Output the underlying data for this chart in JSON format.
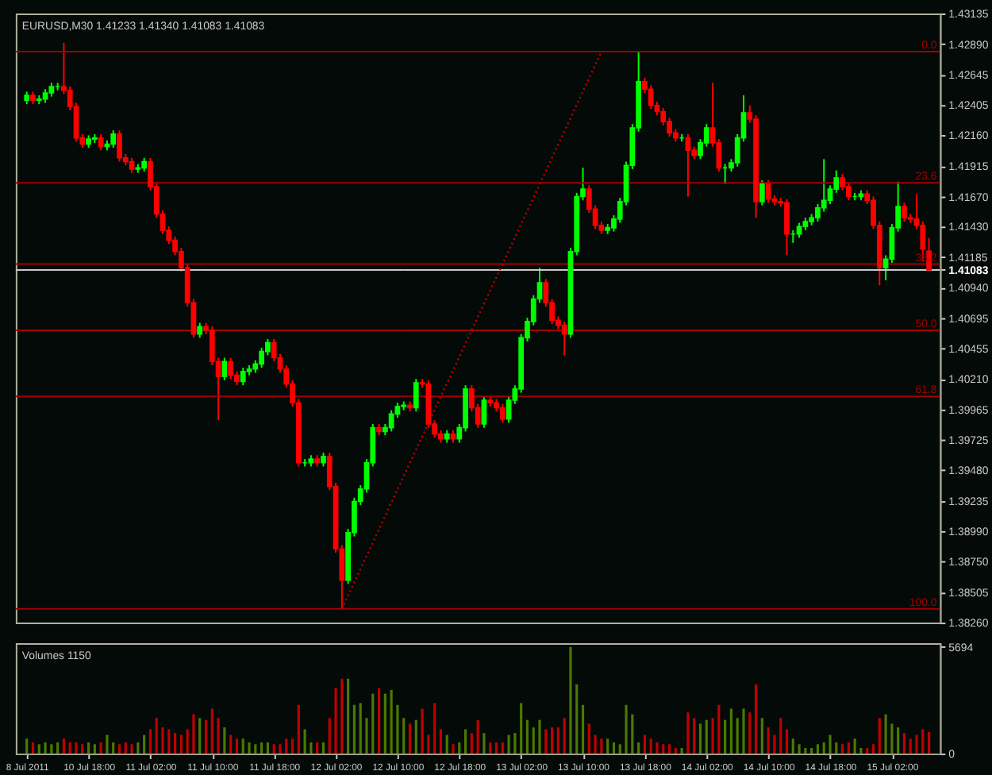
{
  "chart_data": [
    {
      "type": "candlestick",
      "title": "EURUSD,M30  1.41233 1.41340 1.41083 1.41083",
      "categories": [
        null,
        null,
        null,
        null,
        null,
        null,
        null,
        null,
        null,
        null,
        null,
        null,
        null,
        null,
        null,
        null,
        null,
        null,
        null,
        null,
        null,
        null,
        null,
        null,
        null,
        null,
        null,
        null,
        null,
        null,
        null,
        null,
        null,
        null,
        null,
        null,
        null,
        null,
        null,
        null,
        null,
        null,
        null,
        null,
        null,
        null,
        null,
        null,
        null,
        null,
        null,
        null,
        null,
        null,
        null,
        null,
        null,
        null,
        null,
        null,
        null,
        null,
        null,
        null,
        null,
        null,
        null,
        null,
        null,
        null,
        null,
        null,
        null,
        null,
        null,
        null,
        null,
        null,
        null,
        null,
        null,
        null,
        null,
        null,
        null,
        null,
        null,
        null,
        null,
        null,
        null,
        null,
        null,
        null,
        null,
        null,
        null,
        null,
        null,
        null,
        null,
        null,
        null,
        null,
        null,
        null,
        null,
        null,
        null,
        null,
        null,
        null,
        null,
        null,
        null,
        null,
        null,
        null,
        null,
        null,
        null,
        null,
        null,
        null,
        null,
        null,
        null,
        null,
        null,
        null,
        null,
        null,
        null,
        null,
        null,
        null,
        null,
        null,
        null,
        null,
        null,
        null,
        null,
        null,
        null,
        null,
        null
      ],
      "ohlc": [
        [
          1.4244,
          1.4251,
          1.4241,
          1.4248
        ],
        [
          1.4248,
          1.4251,
          1.4241,
          1.4244
        ],
        [
          1.4244,
          1.4248,
          1.4241,
          1.4245
        ],
        [
          1.4245,
          1.4253,
          1.4242,
          1.425
        ],
        [
          1.425,
          1.4258,
          1.4247,
          1.4255
        ],
        [
          1.4255,
          1.4258,
          1.4252,
          1.4255
        ],
        [
          1.4255,
          1.429,
          1.4249,
          1.4252
        ],
        [
          1.4252,
          1.4255,
          1.4236,
          1.4239
        ],
        [
          1.4239,
          1.4242,
          1.4211,
          1.4214
        ],
        [
          1.4214,
          1.4217,
          1.4206,
          1.4209
        ],
        [
          1.4209,
          1.4216,
          1.4206,
          1.4213
        ],
        [
          1.4213,
          1.4217,
          1.421,
          1.4214
        ],
        [
          1.4214,
          1.4217,
          1.4204,
          1.4207
        ],
        [
          1.4207,
          1.4212,
          1.4204,
          1.4209
        ],
        [
          1.4209,
          1.422,
          1.4206,
          1.4217
        ],
        [
          1.4217,
          1.422,
          1.4195,
          1.4198
        ],
        [
          1.4198,
          1.4201,
          1.4192,
          1.4195
        ],
        [
          1.4195,
          1.4198,
          1.4186,
          1.4189
        ],
        [
          1.4189,
          1.4193,
          1.4186,
          1.419
        ],
        [
          1.419,
          1.4198,
          1.4187,
          1.4195
        ],
        [
          1.4195,
          1.4198,
          1.4172,
          1.4175
        ],
        [
          1.4175,
          1.4178,
          1.415,
          1.4153
        ],
        [
          1.4153,
          1.4156,
          1.4137,
          1.414
        ],
        [
          1.414,
          1.4143,
          1.4129,
          1.4132
        ],
        [
          1.4132,
          1.4135,
          1.412,
          1.4123
        ],
        [
          1.4123,
          1.4126,
          1.4107,
          1.411
        ],
        [
          1.411,
          1.4113,
          1.4079,
          1.4082
        ],
        [
          1.4082,
          1.4085,
          1.4054,
          1.4057
        ],
        [
          1.4057,
          1.4066,
          1.4054,
          1.4063
        ],
        [
          1.4063,
          1.4066,
          1.4057,
          1.406
        ],
        [
          1.406,
          1.4063,
          1.4032,
          1.4035
        ],
        [
          1.4035,
          1.4038,
          1.3988,
          1.4023
        ],
        [
          1.4023,
          1.4038,
          1.402,
          1.4035
        ],
        [
          1.4035,
          1.4038,
          1.4021,
          1.4024
        ],
        [
          1.4024,
          1.4027,
          1.4016,
          1.4019
        ],
        [
          1.4019,
          1.403,
          1.4016,
          1.4027
        ],
        [
          1.4027,
          1.4032,
          1.4024,
          1.4029
        ],
        [
          1.4029,
          1.4036,
          1.4026,
          1.4033
        ],
        [
          1.4033,
          1.4046,
          1.403,
          1.4043
        ],
        [
          1.4043,
          1.4053,
          1.404,
          1.405
        ],
        [
          1.405,
          1.4053,
          1.4035,
          1.4038
        ],
        [
          1.4038,
          1.4041,
          1.4026,
          1.4029
        ],
        [
          1.4029,
          1.4032,
          1.4014,
          1.4017
        ],
        [
          1.4017,
          1.402,
          1.3999,
          1.4002
        ],
        [
          1.4002,
          1.4005,
          1.3951,
          1.3954
        ],
        [
          1.3954,
          1.3957,
          1.3951,
          1.3954
        ],
        [
          1.3954,
          1.396,
          1.3951,
          1.3957
        ],
        [
          1.3957,
          1.396,
          1.3951,
          1.3954
        ],
        [
          1.3954,
          1.3962,
          1.3951,
          1.3959
        ],
        [
          1.3959,
          1.3962,
          1.3932,
          1.3935
        ],
        [
          1.3935,
          1.3938,
          1.3882,
          1.3885
        ],
        [
          1.3885,
          1.3888,
          1.3837,
          1.386
        ],
        [
          1.386,
          1.3901,
          1.3857,
          1.3898
        ],
        [
          1.3898,
          1.3926,
          1.3895,
          1.3923
        ],
        [
          1.3923,
          1.3936,
          1.392,
          1.3933
        ],
        [
          1.3933,
          1.3957,
          1.393,
          1.3954
        ],
        [
          1.3954,
          1.3985,
          1.3951,
          1.3982
        ],
        [
          1.3982,
          1.3985,
          1.3976,
          1.3979
        ],
        [
          1.3979,
          1.3985,
          1.3976,
          1.3982
        ],
        [
          1.3982,
          1.3996,
          1.3979,
          1.3993
        ],
        [
          1.3993,
          1.4002,
          1.399,
          1.3999
        ],
        [
          1.3999,
          1.4003,
          1.3996,
          1.4
        ],
        [
          1.4,
          1.4003,
          1.3995,
          1.3998
        ],
        [
          1.3998,
          1.4021,
          1.3995,
          1.4018
        ],
        [
          1.4018,
          1.4021,
          1.4014,
          1.4017
        ],
        [
          1.4017,
          1.402,
          1.3982,
          1.3985
        ],
        [
          1.3985,
          1.3988,
          1.3974,
          1.3977
        ],
        [
          1.3977,
          1.398,
          1.397,
          1.3973
        ],
        [
          1.3973,
          1.398,
          1.397,
          1.3977
        ],
        [
          1.3977,
          1.398,
          1.397,
          1.3973
        ],
        [
          1.3973,
          1.3985,
          1.397,
          1.3982
        ],
        [
          1.3982,
          1.4016,
          1.3979,
          1.4013
        ],
        [
          1.4013,
          1.4016,
          1.3995,
          1.3998
        ],
        [
          1.3998,
          1.4001,
          1.3982,
          1.3985
        ],
        [
          1.3985,
          1.4007,
          1.3982,
          1.4004
        ],
        [
          1.4004,
          1.4007,
          1.3999,
          1.4002
        ],
        [
          1.4002,
          1.4005,
          1.3995,
          1.3998
        ],
        [
          1.3998,
          1.4001,
          1.3986,
          1.3989
        ],
        [
          1.3989,
          1.4007,
          1.3986,
          1.4004
        ],
        [
          1.4004,
          1.4016,
          1.4001,
          1.4013
        ],
        [
          1.4013,
          1.4057,
          1.401,
          1.4054
        ],
        [
          1.4054,
          1.407,
          1.4051,
          1.4067
        ],
        [
          1.4067,
          1.4088,
          1.4064,
          1.4085
        ],
        [
          1.4085,
          1.411,
          1.4082,
          1.4098
        ],
        [
          1.4098,
          1.4101,
          1.4079,
          1.4082
        ],
        [
          1.4082,
          1.4085,
          1.4065,
          1.4068
        ],
        [
          1.4068,
          1.4071,
          1.4061,
          1.4064
        ],
        [
          1.4064,
          1.4067,
          1.404,
          1.4057
        ],
        [
          1.4057,
          1.4126,
          1.4054,
          1.4123
        ],
        [
          1.4123,
          1.417,
          1.412,
          1.4167
        ],
        [
          1.4167,
          1.419,
          1.4164,
          1.4173
        ],
        [
          1.4173,
          1.4176,
          1.4154,
          1.4157
        ],
        [
          1.4157,
          1.416,
          1.4141,
          1.4144
        ],
        [
          1.4144,
          1.4147,
          1.4137,
          1.414
        ],
        [
          1.414,
          1.4145,
          1.4137,
          1.4142
        ],
        [
          1.4142,
          1.4152,
          1.4139,
          1.4149
        ],
        [
          1.4149,
          1.4166,
          1.4146,
          1.4163
        ],
        [
          1.4163,
          1.4195,
          1.416,
          1.4192
        ],
        [
          1.4192,
          1.4225,
          1.4189,
          1.4222
        ],
        [
          1.4222,
          1.4283,
          1.4219,
          1.4259
        ],
        [
          1.4259,
          1.4262,
          1.425,
          1.4253
        ],
        [
          1.4253,
          1.4256,
          1.4237,
          1.424
        ],
        [
          1.424,
          1.4243,
          1.4232,
          1.4235
        ],
        [
          1.4235,
          1.4238,
          1.4224,
          1.4227
        ],
        [
          1.4227,
          1.423,
          1.4215,
          1.4218
        ],
        [
          1.4218,
          1.4221,
          1.4211,
          1.4214
        ],
        [
          1.4214,
          1.4217,
          1.4211,
          1.4214
        ],
        [
          1.4214,
          1.4217,
          1.4167,
          1.4204
        ],
        [
          1.4204,
          1.4207,
          1.4197,
          1.42
        ],
        [
          1.42,
          1.4213,
          1.4197,
          1.421
        ],
        [
          1.421,
          1.4225,
          1.4207,
          1.4222
        ],
        [
          1.4222,
          1.4258,
          1.4207,
          1.421
        ],
        [
          1.421,
          1.4213,
          1.4187,
          1.419
        ],
        [
          1.419,
          1.4193,
          1.4177,
          1.419
        ],
        [
          1.419,
          1.4197,
          1.4187,
          1.4194
        ],
        [
          1.4194,
          1.4217,
          1.4191,
          1.4214
        ],
        [
          1.4214,
          1.4248,
          1.4211,
          1.4234
        ],
        [
          1.4234,
          1.424,
          1.4226,
          1.4229
        ],
        [
          1.4229,
          1.4232,
          1.415,
          1.4163
        ],
        [
          1.4163,
          1.418,
          1.416,
          1.4177
        ],
        [
          1.4177,
          1.418,
          1.4162,
          1.4165
        ],
        [
          1.4165,
          1.4168,
          1.416,
          1.4163
        ],
        [
          1.4163,
          1.4166,
          1.4159,
          1.4162
        ],
        [
          1.4162,
          1.4165,
          1.412,
          1.4137
        ],
        [
          1.4137,
          1.414,
          1.413,
          1.4137
        ],
        [
          1.4137,
          1.4146,
          1.4134,
          1.4143
        ],
        [
          1.4143,
          1.415,
          1.414,
          1.4147
        ],
        [
          1.4147,
          1.4153,
          1.4144,
          1.415
        ],
        [
          1.415,
          1.4161,
          1.4147,
          1.4158
        ],
        [
          1.4158,
          1.4197,
          1.4155,
          1.4164
        ],
        [
          1.4164,
          1.4176,
          1.4161,
          1.4173
        ],
        [
          1.4173,
          1.4188,
          1.417,
          1.4182
        ],
        [
          1.4182,
          1.4185,
          1.4172,
          1.4175
        ],
        [
          1.4175,
          1.4178,
          1.4164,
          1.4167
        ],
        [
          1.4167,
          1.417,
          1.4164,
          1.4167
        ],
        [
          1.4167,
          1.4172,
          1.4164,
          1.4169
        ],
        [
          1.4169,
          1.4172,
          1.4161,
          1.4164
        ],
        [
          1.4164,
          1.4167,
          1.4141,
          1.4144
        ],
        [
          1.4144,
          1.4147,
          1.4096,
          1.411
        ],
        [
          1.411,
          1.412,
          1.41,
          1.4117
        ],
        [
          1.4117,
          1.4145,
          1.4114,
          1.4142
        ],
        [
          1.4142,
          1.4179,
          1.4139,
          1.4159
        ],
        [
          1.4159,
          1.4162,
          1.4147,
          1.415
        ],
        [
          1.415,
          1.4153,
          1.4146,
          1.4149
        ],
        [
          1.4149,
          1.4169,
          1.4141,
          1.4144
        ],
        [
          1.4144,
          1.4147,
          1.4115,
          1.4125
        ],
        [
          1.41233,
          1.4134,
          1.41083,
          1.41083
        ]
      ],
      "colors": [
        "#00ff00",
        "#ff0000",
        "#00ff00",
        "#00ff00",
        "#00ff00",
        "#00ff00",
        "#ff0000",
        "#ff0000",
        "#ff0000",
        "#ff0000",
        "#00ff00",
        "#00ff00",
        "#ff0000",
        "#00ff00",
        "#00ff00",
        "#ff0000",
        "#ff0000",
        "#ff0000",
        "#00ff00",
        "#00ff00",
        "#ff0000",
        "#ff0000",
        "#ff0000",
        "#ff0000",
        "#ff0000",
        "#ff0000",
        "#ff0000",
        "#ff0000",
        "#00ff00",
        "#ff0000",
        "#ff0000",
        "#ff0000",
        "#00ff00",
        "#ff0000",
        "#ff0000",
        "#00ff00",
        "#00ff00",
        "#00ff00",
        "#00ff00",
        "#00ff00",
        "#ff0000",
        "#ff0000",
        "#ff0000",
        "#ff0000",
        "#ff0000",
        "#00ff00",
        "#00ff00",
        "#ff0000",
        "#00ff00",
        "#ff0000",
        "#ff0000",
        "#ff0000",
        "#00ff00",
        "#00ff00",
        "#00ff00",
        "#00ff00",
        "#00ff00",
        "#ff0000",
        "#00ff00",
        "#00ff00",
        "#00ff00",
        "#00ff00",
        "#ff0000",
        "#00ff00",
        "#ff0000",
        "#ff0000",
        "#ff0000",
        "#ff0000",
        "#00ff00",
        "#ff0000",
        "#00ff00",
        "#00ff00",
        "#ff0000",
        "#ff0000",
        "#00ff00",
        "#ff0000",
        "#ff0000",
        "#ff0000",
        "#00ff00",
        "#00ff00",
        "#00ff00",
        "#00ff00",
        "#00ff00",
        "#00ff00",
        "#ff0000",
        "#ff0000",
        "#ff0000",
        "#ff0000",
        "#00ff00",
        "#00ff00",
        "#00ff00",
        "#ff0000",
        "#ff0000",
        "#ff0000",
        "#00ff00",
        "#00ff00",
        "#00ff00",
        "#00ff00",
        "#00ff00",
        "#00ff00",
        "#ff0000",
        "#ff0000",
        "#ff0000",
        "#ff0000",
        "#ff0000",
        "#ff0000",
        "#00ff00",
        "#ff0000",
        "#ff0000",
        "#00ff00",
        "#00ff00",
        "#ff0000",
        "#ff0000",
        "#00ff00",
        "#00ff00",
        "#00ff00",
        "#00ff00",
        "#ff0000",
        "#ff0000",
        "#00ff00",
        "#ff0000",
        "#ff0000",
        "#ff0000",
        "#ff0000",
        "#00ff00",
        "#00ff00",
        "#00ff00",
        "#00ff00",
        "#00ff00",
        "#00ff00",
        "#00ff00",
        "#00ff00",
        "#ff0000",
        "#ff0000",
        "#00ff00",
        "#00ff00",
        "#ff0000",
        "#ff0000",
        "#ff0000",
        "#00ff00",
        "#00ff00",
        "#00ff00",
        "#ff0000",
        "#ff0000",
        "#ff0000",
        "#ff0000",
        "#ff0000"
      ],
      "series": [
        {
          "type": "line",
          "color": "#c00000",
          "line_style": "dotted",
          "values": [
            null,
            null,
            null,
            null,
            null,
            null,
            null,
            null,
            null,
            null,
            null,
            null,
            null,
            null,
            null,
            null,
            null,
            null,
            null,
            null,
            null,
            null,
            null,
            null,
            null,
            null,
            null,
            null,
            null,
            null,
            null,
            null,
            null,
            null,
            null,
            null,
            null,
            null,
            null,
            null,
            null,
            null,
            null,
            null,
            null,
            null,
            null,
            null,
            null,
            null,
            null,
            1.3837,
            null,
            null,
            null,
            null,
            null,
            null,
            null,
            null,
            null,
            null,
            null,
            null,
            null,
            null,
            null,
            null,
            null,
            null,
            null,
            null,
            null,
            null,
            null,
            null,
            null,
            null,
            null,
            null,
            null,
            null,
            null,
            null,
            null,
            null,
            null,
            null,
            null,
            null,
            null,
            null,
            null,
            1.4283,
            null,
            null,
            null,
            null,
            null,
            null,
            null,
            null,
            null,
            null,
            null,
            null,
            null,
            null,
            null,
            null,
            null,
            null,
            null,
            null,
            null,
            null,
            null,
            null,
            null,
            null,
            null,
            null,
            null,
            null,
            null,
            null,
            null,
            null,
            null,
            null,
            null,
            null,
            null,
            null,
            null,
            null,
            null,
            null,
            null,
            null,
            null,
            null,
            null,
            null,
            null,
            null,
            null
          ]
        }
      ],
      "ref_lines": [
        {
          "axis": "y",
          "value": 1.4283,
          "color": "#a00000"
        },
        {
          "axis": "y",
          "value": 1.4178,
          "color": "#a00000"
        },
        {
          "axis": "y",
          "value": 1.4113,
          "color": "#a00000"
        },
        {
          "axis": "y",
          "value": 1.406,
          "color": "#a00000"
        },
        {
          "axis": "y",
          "value": 1.4007,
          "color": "#a00000"
        },
        {
          "axis": "y",
          "value": 1.3837,
          "color": "#a00000"
        },
        {
          "axis": "y",
          "value": 1.41083,
          "color": "#c8c8c8"
        }
      ],
      "annotations": [
        {
          "text": "0.0",
          "y": 1.4283
        },
        {
          "text": "23.6",
          "y": 1.4178
        },
        {
          "text": "38.2",
          "y": 1.4113
        },
        {
          "text": "50.0",
          "y": 1.406
        },
        {
          "text": "61.8",
          "y": 1.4007
        },
        {
          "text": "100.0",
          "y": 1.3837
        }
      ],
      "ylim": [
        1.3826,
        1.43135
      ],
      "yticks": [
        {
          "value": 1.3826,
          "label": "1.38260"
        },
        1.38505,
        {
          "value": 1.3875,
          "label": "1.38750"
        },
        {
          "value": 1.3899,
          "label": "1.38990"
        },
        1.39235,
        {
          "value": 1.3948,
          "label": "1.39480"
        },
        1.39725,
        1.39965,
        {
          "value": 1.4021,
          "label": "1.40210"
        },
        1.40455,
        1.40695,
        {
          "value": 1.4094,
          "label": "1.40940"
        },
        1.41083,
        1.41185,
        {
          "value": 1.4143,
          "label": "1.41430"
        },
        {
          "value": 1.4167,
          "label": "1.41670"
        },
        1.41915,
        {
          "value": 1.4216,
          "label": "1.42160"
        },
        1.42405,
        1.42645,
        {
          "value": 1.4289,
          "label": "1.42890"
        },
        1.43135
      ],
      "tick_labels": "y",
      "grid": false
    },
    {
      "type": "bar",
      "title": "Volumes 1150",
      "categories": [
        "8 Jul 2011",
        null,
        null,
        null,
        null,
        null,
        null,
        null,
        null,
        null,
        "10 Jul 18:00",
        null,
        null,
        null,
        null,
        null,
        null,
        null,
        null,
        null,
        "11 Jul 02:00",
        null,
        null,
        null,
        null,
        null,
        null,
        null,
        null,
        null,
        "11 Jul 10:00",
        null,
        null,
        null,
        null,
        null,
        null,
        null,
        null,
        null,
        "11 Jul 18:00",
        null,
        null,
        null,
        null,
        null,
        null,
        null,
        null,
        null,
        "12 Jul 02:00",
        null,
        null,
        null,
        null,
        null,
        null,
        null,
        null,
        null,
        "12 Jul 10:00",
        null,
        null,
        null,
        null,
        null,
        null,
        null,
        null,
        null,
        "12 Jul 18:00",
        null,
        null,
        null,
        null,
        null,
        null,
        null,
        null,
        null,
        "13 Jul 02:00",
        null,
        null,
        null,
        null,
        null,
        null,
        null,
        null,
        null,
        "13 Jul 10:00",
        null,
        null,
        null,
        null,
        null,
        null,
        null,
        null,
        null,
        "13 Jul 18:00",
        null,
        null,
        null,
        null,
        null,
        null,
        null,
        null,
        null,
        "14 Jul 02:00",
        null,
        null,
        null,
        null,
        null,
        null,
        null,
        null,
        null,
        "14 Jul 10:00",
        null,
        null,
        null,
        null,
        null,
        null,
        null,
        null,
        null,
        "14 Jul 18:00",
        null,
        null,
        null,
        null,
        null,
        null,
        null,
        null,
        null,
        "15 Jul 02:00",
        null,
        null,
        null,
        null,
        null,
        null
      ],
      "values": [
        800,
        600,
        500,
        600,
        500,
        600,
        800,
        600,
        600,
        500,
        600,
        500,
        600,
        1000,
        600,
        500,
        600,
        500,
        600,
        1000,
        1300,
        1900,
        1400,
        1300,
        1100,
        1000,
        1300,
        2100,
        1900,
        1800,
        2400,
        1900,
        1400,
        1000,
        800,
        800,
        600,
        500,
        600,
        600,
        500,
        500,
        800,
        800,
        2600,
        1300,
        600,
        600,
        600,
        1900,
        3500,
        4000,
        4000,
        2600,
        2700,
        1900,
        3200,
        3500,
        3200,
        3400,
        2600,
        1900,
        1600,
        1800,
        2400,
        1000,
        2700,
        1300,
        1000,
        500,
        600,
        1300,
        1100,
        1800,
        1100,
        600,
        600,
        600,
        1000,
        1100,
        2700,
        1800,
        1400,
        1800,
        1300,
        1400,
        1400,
        1900,
        5694,
        3700,
        2600,
        1600,
        1000,
        800,
        800,
        600,
        500,
        2600,
        2100,
        600,
        1000,
        800,
        600,
        500,
        500,
        300,
        300,
        2200,
        1900,
        1600,
        1800,
        1900,
        2600,
        1800,
        2400,
        1900,
        2400,
        2200,
        3700,
        1900,
        1400,
        1000,
        1900,
        1300,
        800,
        500,
        300,
        300,
        500,
        600,
        1000,
        600,
        500,
        600,
        800,
        300,
        300,
        500,
        1900,
        2100,
        1600,
        1400,
        1100,
        800,
        1000,
        1300,
        1150
      ],
      "colors": [
        "#4a7a00",
        "#c00000",
        "#4a7a00",
        "#4a7a00",
        "#4a7a00",
        "#4a7a00",
        "#c00000",
        "#c00000",
        "#c00000",
        "#c00000",
        "#4a7a00",
        "#4a7a00",
        "#c00000",
        "#4a7a00",
        "#4a7a00",
        "#c00000",
        "#c00000",
        "#c00000",
        "#4a7a00",
        "#4a7a00",
        "#c00000",
        "#c00000",
        "#c00000",
        "#c00000",
        "#c00000",
        "#c00000",
        "#c00000",
        "#c00000",
        "#4a7a00",
        "#c00000",
        "#c00000",
        "#c00000",
        "#4a7a00",
        "#c00000",
        "#c00000",
        "#4a7a00",
        "#4a7a00",
        "#4a7a00",
        "#4a7a00",
        "#4a7a00",
        "#c00000",
        "#c00000",
        "#c00000",
        "#c00000",
        "#c00000",
        "#4a7a00",
        "#4a7a00",
        "#c00000",
        "#4a7a00",
        "#c00000",
        "#c00000",
        "#c00000",
        "#4a7a00",
        "#4a7a00",
        "#4a7a00",
        "#4a7a00",
        "#4a7a00",
        "#c00000",
        "#4a7a00",
        "#4a7a00",
        "#4a7a00",
        "#4a7a00",
        "#c00000",
        "#4a7a00",
        "#c00000",
        "#c00000",
        "#c00000",
        "#c00000",
        "#4a7a00",
        "#c00000",
        "#4a7a00",
        "#4a7a00",
        "#c00000",
        "#c00000",
        "#4a7a00",
        "#c00000",
        "#c00000",
        "#c00000",
        "#4a7a00",
        "#4a7a00",
        "#4a7a00",
        "#4a7a00",
        "#4a7a00",
        "#4a7a00",
        "#c00000",
        "#c00000",
        "#c00000",
        "#c00000",
        "#4a7a00",
        "#4a7a00",
        "#4a7a00",
        "#c00000",
        "#c00000",
        "#c00000",
        "#4a7a00",
        "#4a7a00",
        "#4a7a00",
        "#4a7a00",
        "#4a7a00",
        "#4a7a00",
        "#c00000",
        "#c00000",
        "#c00000",
        "#c00000",
        "#c00000",
        "#c00000",
        "#4a7a00",
        "#c00000",
        "#c00000",
        "#4a7a00",
        "#4a7a00",
        "#c00000",
        "#c00000",
        "#4a7a00",
        "#4a7a00",
        "#4a7a00",
        "#4a7a00",
        "#c00000",
        "#c00000",
        "#4a7a00",
        "#c00000",
        "#c00000",
        "#c00000",
        "#c00000",
        "#4a7a00",
        "#4a7a00",
        "#4a7a00",
        "#4a7a00",
        "#4a7a00",
        "#4a7a00",
        "#4a7a00",
        "#4a7a00",
        "#c00000",
        "#c00000",
        "#4a7a00",
        "#4a7a00",
        "#c00000",
        "#c00000",
        "#c00000",
        "#4a7a00",
        "#4a7a00",
        "#4a7a00",
        "#c00000",
        "#c00000",
        "#c00000",
        "#c00000",
        "#c00000"
      ],
      "ylim": [
        0,
        5900
      ],
      "yticks": [
        0,
        5694
      ],
      "grid": false
    }
  ]
}
